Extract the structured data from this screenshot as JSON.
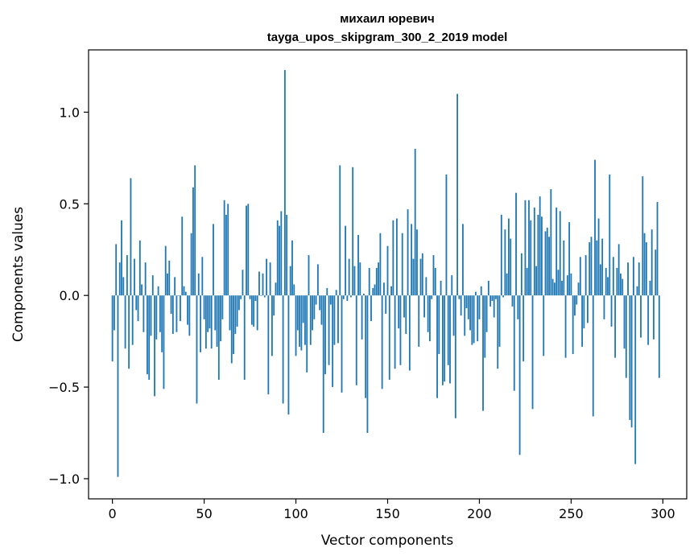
{
  "chart_data": {
    "type": "bar",
    "title": "михаил юревич",
    "subtitle": "tayga_upos_skipgram_300_2_2019 model",
    "xlabel": "Vector components",
    "ylabel": "Components values",
    "xlim": [
      -13,
      313
    ],
    "ylim": [
      -1.11,
      1.34
    ],
    "xticks": [
      0,
      50,
      100,
      150,
      200,
      250,
      300
    ],
    "xtick_labels": [
      "0",
      "50",
      "100",
      "150",
      "200",
      "250",
      "300"
    ],
    "yticks": [
      -1.0,
      -0.5,
      0.0,
      0.5,
      1.0
    ],
    "ytick_labels": [
      "−1.0",
      "−0.5",
      "0.0",
      "0.5",
      "1.0"
    ],
    "grid": false,
    "bar_color": "#1f77b4",
    "values": [
      -0.36,
      -0.19,
      0.28,
      -0.99,
      0.18,
      0.41,
      0.1,
      -0.29,
      0.22,
      -0.4,
      0.64,
      -0.27,
      0.2,
      -0.08,
      -0.14,
      0.3,
      0.06,
      -0.2,
      0.18,
      -0.43,
      -0.46,
      -0.22,
      0.11,
      -0.55,
      -0.24,
      0.05,
      -0.2,
      -0.31,
      -0.51,
      0.27,
      0.12,
      0.19,
      -0.1,
      -0.21,
      0.1,
      -0.2,
      0.0,
      -0.14,
      0.43,
      0.05,
      0.02,
      -0.16,
      -0.22,
      0.34,
      0.59,
      0.71,
      -0.59,
      0.12,
      -0.31,
      0.21,
      -0.13,
      -0.29,
      -0.2,
      -0.18,
      -0.29,
      0.39,
      -0.19,
      -0.28,
      -0.46,
      -0.25,
      -0.13,
      0.52,
      0.44,
      0.5,
      -0.19,
      -0.37,
      -0.32,
      -0.21,
      -0.17,
      -0.08,
      -0.02,
      0.14,
      -0.46,
      0.49,
      0.5,
      -0.02,
      -0.16,
      -0.17,
      -0.03,
      -0.19,
      0.13,
      0.0,
      0.12,
      -0.01,
      0.2,
      -0.54,
      0.18,
      -0.33,
      -0.11,
      0.07,
      0.41,
      0.38,
      0.46,
      -0.59,
      1.23,
      0.44,
      -0.65,
      0.16,
      0.3,
      0.06,
      -0.33,
      -0.19,
      -0.28,
      -0.3,
      -0.15,
      -0.27,
      -0.42,
      0.22,
      -0.27,
      -0.19,
      -0.13,
      -0.05,
      0.17,
      -0.08,
      -0.16,
      -0.75,
      -0.43,
      0.04,
      -0.38,
      -0.05,
      -0.5,
      -0.27,
      0.03,
      -0.26,
      0.71,
      -0.53,
      -0.02,
      0.38,
      -0.03,
      0.2,
      -0.01,
      0.7,
      0.16,
      -0.49,
      0.33,
      0.18,
      -0.24,
      0.01,
      -0.56,
      -0.75,
      0.15,
      -0.14,
      0.04,
      0.06,
      0.15,
      0.18,
      0.34,
      -0.51,
      0.07,
      -0.1,
      0.27,
      -0.46,
      0.05,
      0.41,
      -0.4,
      0.42,
      -0.18,
      -0.38,
      0.34,
      -0.12,
      -0.21,
      0.47,
      -0.41,
      0.39,
      0.2,
      0.8,
      0.36,
      -0.28,
      0.2,
      0.23,
      -0.12,
      0.1,
      -0.2,
      -0.25,
      -0.02,
      0.22,
      0.15,
      -0.56,
      -0.32,
      0.08,
      -0.49,
      -0.47,
      0.66,
      -0.38,
      -0.48,
      0.11,
      -0.22,
      -0.67,
      1.1,
      -0.02,
      -0.11,
      0.39,
      -0.22,
      -0.07,
      -0.13,
      -0.19,
      -0.27,
      -0.26,
      0.02,
      -0.25,
      -0.13,
      0.05,
      -0.63,
      -0.34,
      -0.2,
      0.08,
      -0.06,
      -0.03,
      -0.12,
      -0.02,
      -0.4,
      -0.28,
      0.44,
      -0.01,
      0.36,
      0.12,
      0.42,
      0.31,
      -0.06,
      -0.52,
      0.56,
      -0.13,
      -0.87,
      0.23,
      -0.36,
      0.52,
      0.15,
      0.52,
      0.41,
      -0.62,
      0.48,
      0.16,
      0.44,
      0.54,
      0.43,
      -0.33,
      0.35,
      0.37,
      0.32,
      0.58,
      0.09,
      0.07,
      0.48,
      0.14,
      0.46,
      0.08,
      0.3,
      -0.34,
      0.11,
      0.4,
      0.12,
      -0.32,
      -0.11,
      -0.05,
      0.07,
      0.21,
      -0.28,
      -0.18,
      0.22,
      -0.15,
      0.29,
      0.32,
      -0.66,
      0.74,
      0.3,
      0.42,
      0.17,
      0.31,
      -0.13,
      0.15,
      0.1,
      0.66,
      -0.17,
      0.21,
      -0.34,
      0.15,
      0.28,
      0.12,
      0.09,
      -0.29,
      -0.45,
      0.18,
      -0.68,
      -0.72,
      0.21,
      -0.92,
      0.05,
      0.18,
      -0.23,
      0.65,
      0.34,
      0.29,
      -0.27,
      0.08,
      0.36,
      -0.24,
      0.25,
      0.51,
      -0.45
    ]
  }
}
